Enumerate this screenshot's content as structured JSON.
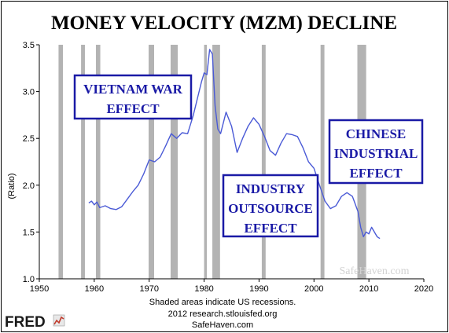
{
  "chart_data": {
    "type": "line",
    "title": "MONEY VELOCITY (MZM) DECLINE",
    "ylabel": "(Ratio)",
    "xlabel": "",
    "xlim": [
      1950,
      2020
    ],
    "ylim": [
      1.0,
      3.5
    ],
    "x_ticks": [
      1950,
      1960,
      1970,
      1980,
      1990,
      2000,
      2010,
      2020
    ],
    "y_ticks": [
      "1.0",
      "1.5",
      "2.0",
      "2.5",
      "3.0",
      "3.5"
    ],
    "grid": false,
    "recessions": [
      [
        1953.5,
        1954.3
      ],
      [
        1957.6,
        1958.3
      ],
      [
        1960.3,
        1961.1
      ],
      [
        1969.9,
        1970.9
      ],
      [
        1973.9,
        1975.2
      ],
      [
        1980.0,
        1980.5
      ],
      [
        1981.5,
        1982.9
      ],
      [
        1990.5,
        1991.2
      ],
      [
        2001.2,
        2001.9
      ],
      [
        2007.9,
        2009.5
      ]
    ],
    "series": [
      {
        "color": "#4a5ad6",
        "x": [
          1959.0,
          1959.5,
          1960.0,
          1960.5,
          1961.0,
          1962.0,
          1963.0,
          1964.0,
          1965.0,
          1966.0,
          1967.0,
          1968.0,
          1969.0,
          1970.0,
          1971.0,
          1972.0,
          1973.0,
          1974.0,
          1975.0,
          1976.0,
          1977.0,
          1978.0,
          1979.0,
          1979.5,
          1980.0,
          1980.5,
          1981.0,
          1981.5,
          1982.0,
          1982.5,
          1983.0,
          1984.0,
          1985.0,
          1986.0,
          1987.0,
          1988.0,
          1989.0,
          1990.0,
          1991.0,
          1992.0,
          1993.0,
          1994.0,
          1995.0,
          1996.0,
          1997.0,
          1998.0,
          1999.0,
          2000.0,
          2001.0,
          2002.0,
          2003.0,
          2004.0,
          2005.0,
          2006.0,
          2007.0,
          2008.0,
          2008.5,
          2009.0,
          2009.5,
          2010.0,
          2010.5,
          2011.0,
          2011.5,
          2012.0
        ],
        "y": [
          1.81,
          1.83,
          1.79,
          1.82,
          1.76,
          1.78,
          1.75,
          1.74,
          1.77,
          1.85,
          1.93,
          2.0,
          2.12,
          2.27,
          2.25,
          2.3,
          2.42,
          2.55,
          2.5,
          2.56,
          2.55,
          2.74,
          2.98,
          3.1,
          3.2,
          3.18,
          3.45,
          3.4,
          2.85,
          2.6,
          2.55,
          2.78,
          2.63,
          2.35,
          2.5,
          2.63,
          2.72,
          2.65,
          2.52,
          2.37,
          2.32,
          2.45,
          2.55,
          2.54,
          2.52,
          2.4,
          2.25,
          2.18,
          2.0,
          1.83,
          1.75,
          1.78,
          1.88,
          1.92,
          1.88,
          1.72,
          1.55,
          1.45,
          1.5,
          1.48,
          1.55,
          1.5,
          1.45,
          1.43
        ]
      }
    ],
    "annotations": [
      {
        "lines": [
          "VIETNAM WAR",
          "EFFECT"
        ]
      },
      {
        "lines": [
          "INDUSTRY",
          "OUTSOURCE",
          "EFFECT"
        ]
      },
      {
        "lines": [
          "CHINESE",
          "INDUSTRIAL",
          "EFFECT"
        ]
      }
    ],
    "notes": [
      "Shaded areas indicate US recessions.",
      "2012 research.stlouisfed.org",
      "SafeHaven.com"
    ],
    "logo": "FRED",
    "watermark": "SafeHaven.com"
  }
}
